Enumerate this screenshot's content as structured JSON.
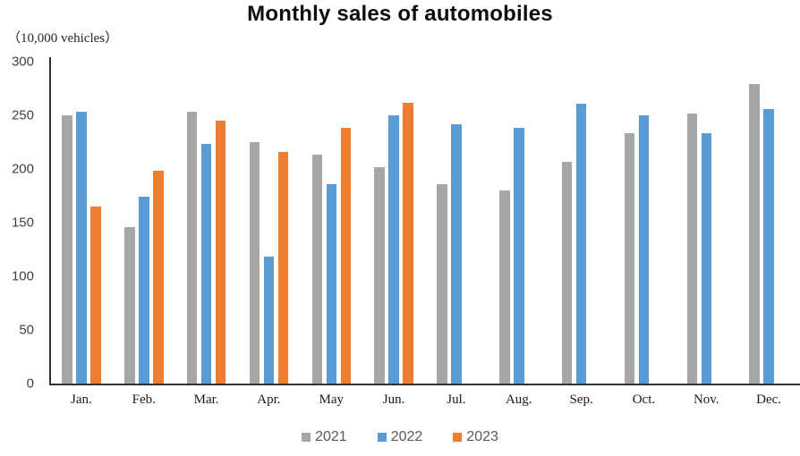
{
  "title": "Monthly sales of automobiles",
  "unit_label": "（10,000 vehicles）",
  "chart_data": {
    "type": "bar",
    "title": "Monthly sales of automobiles",
    "ylabel": "(10,000 vehicles)",
    "xlabel": "",
    "categories": [
      "Jan.",
      "Feb.",
      "Mar.",
      "Apr.",
      "May",
      "Jun.",
      "Jul.",
      "Aug.",
      "Sep.",
      "Oct.",
      "Nov.",
      "Dec."
    ],
    "series": [
      {
        "name": "2021",
        "color": "#A6A6A6",
        "values": [
          250,
          146,
          253,
          225,
          213,
          202,
          186,
          180,
          207,
          233,
          252,
          279
        ]
      },
      {
        "name": "2022",
        "color": "#5B9BD5",
        "values": [
          253,
          174,
          223,
          118,
          186,
          250,
          242,
          238,
          261,
          250,
          233,
          256
        ]
      },
      {
        "name": "2023",
        "color": "#ED7D31",
        "values": [
          165,
          198,
          245,
          216,
          238,
          262,
          null,
          null,
          null,
          null,
          null,
          null
        ]
      }
    ],
    "ylim": [
      0,
      300
    ],
    "yticks": [
      0,
      50,
      100,
      150,
      200,
      250,
      300
    ],
    "grid": false,
    "legend_position": "bottom"
  },
  "colors": {
    "axis": "#333333",
    "y_tick_label": "#404040",
    "x_tick_label": "#1a1a1a",
    "legend_label": "#595959",
    "series_2021": "#A6A6A6",
    "series_2022": "#5B9BD5",
    "series_2023": "#ED7D31"
  }
}
